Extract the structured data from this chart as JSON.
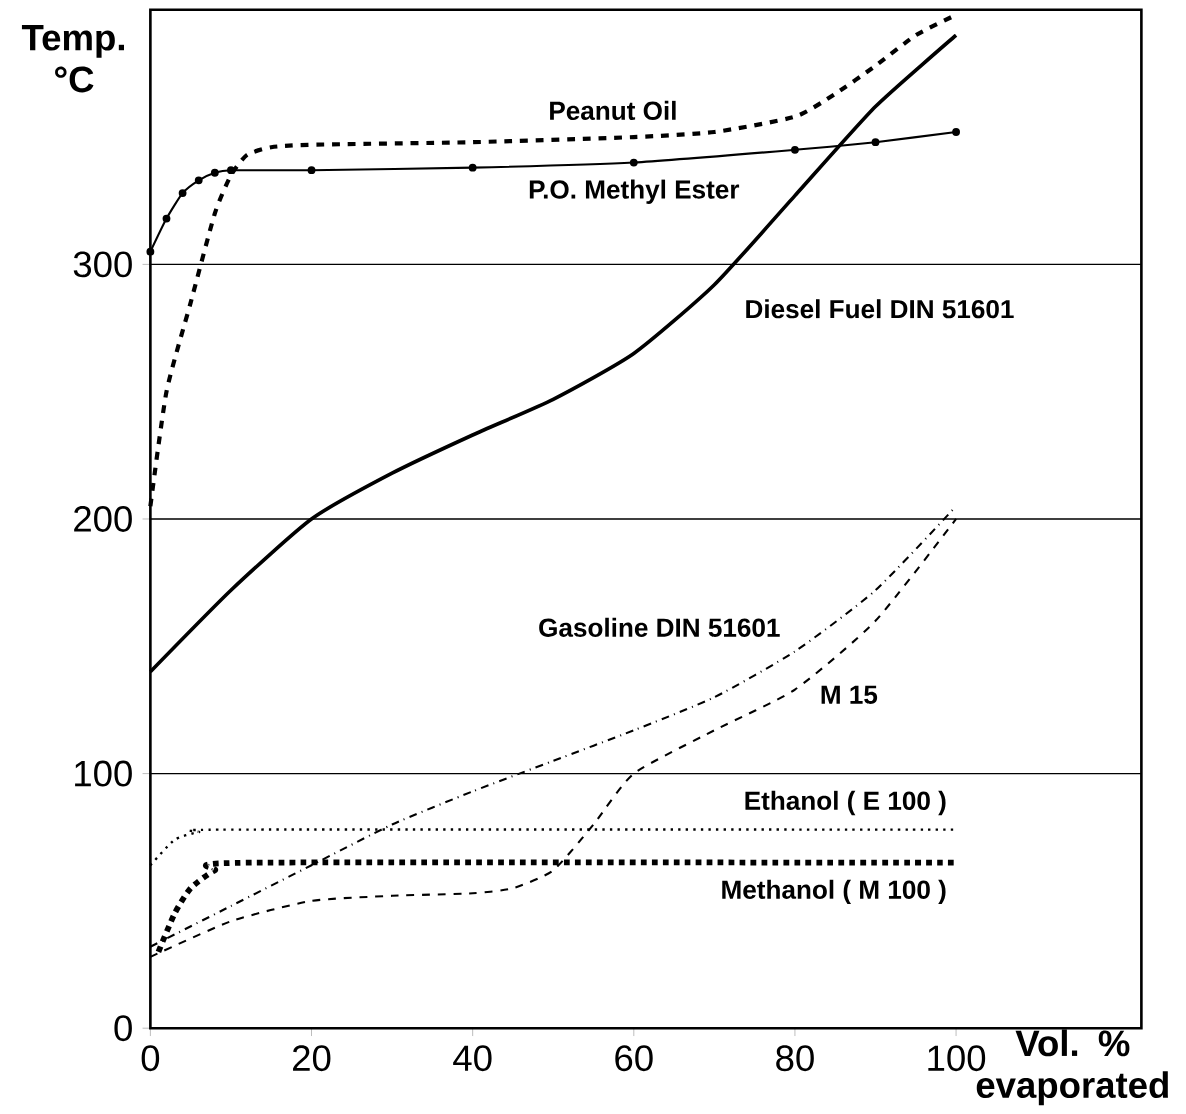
{
  "chart_data": {
    "type": "line",
    "xlabel": "Vol. % evaporated",
    "ylabel": "Temp. °C",
    "xlim": [
      0,
      123
    ],
    "ylim": [
      0,
      400
    ],
    "xticks": [
      0,
      20,
      40,
      60,
      80,
      100
    ],
    "yticks": [
      0,
      100,
      200,
      300
    ],
    "grid": "y",
    "series": [
      {
        "name": "Peanut Oil",
        "color": "#000000",
        "line_style": "dashed",
        "marker": "none",
        "x": [
          0,
          2,
          5,
          8,
          10,
          12,
          15,
          20,
          40,
          60,
          70,
          80,
          85,
          90,
          95,
          100
        ],
        "values": [
          205,
          250,
          285,
          320,
          335,
          343,
          346,
          347,
          348,
          350,
          352,
          358,
          367,
          378,
          390,
          398
        ]
      },
      {
        "name": "P.O. Methyl Ester",
        "color": "#000000",
        "line_style": "solid",
        "marker": "circle",
        "x": [
          0,
          2,
          4,
          6,
          8,
          10,
          20,
          40,
          60,
          80,
          90,
          100
        ],
        "values": [
          305,
          318,
          328,
          333,
          336,
          337,
          337,
          338,
          340,
          345,
          348,
          352
        ]
      },
      {
        "name": "Diesel Fuel DIN 51601",
        "color": "#000000",
        "line_style": "solid",
        "marker": "none",
        "x": [
          0,
          10,
          20,
          30,
          40,
          50,
          60,
          70,
          80,
          90,
          100
        ],
        "values": [
          140,
          172,
          200,
          218,
          233,
          247,
          265,
          292,
          327,
          362,
          390
        ]
      },
      {
        "name": "Gasoline DIN 51601",
        "color": "#000000",
        "line_style": "dashdotted",
        "marker": "none",
        "x": [
          0,
          10,
          20,
          30,
          40,
          50,
          60,
          70,
          80,
          90,
          100
        ],
        "values": [
          32,
          48,
          64,
          80,
          93,
          105,
          117,
          130,
          148,
          172,
          205
        ]
      },
      {
        "name": "M 15",
        "color": "#000000",
        "line_style": "dashed",
        "marker": "none",
        "x": [
          0,
          10,
          20,
          30,
          40,
          45,
          50,
          55,
          60,
          70,
          80,
          90,
          100
        ],
        "values": [
          28,
          42,
          50,
          52,
          53,
          55,
          62,
          80,
          100,
          117,
          133,
          160,
          200
        ]
      },
      {
        "name": "Ethanol ( E 100 )",
        "color": "#000000",
        "line_style": "dotted",
        "marker": "none",
        "x": [
          0,
          3,
          6,
          10,
          100
        ],
        "values": [
          64,
          74,
          77,
          78,
          78
        ]
      },
      {
        "name": "Methanol ( M 100 )",
        "color": "#000000",
        "line_style": "dotted",
        "marker": "none",
        "x": [
          1,
          3,
          5,
          8,
          12,
          100
        ],
        "values": [
          30,
          45,
          55,
          62,
          65,
          65
        ]
      }
    ]
  }
}
